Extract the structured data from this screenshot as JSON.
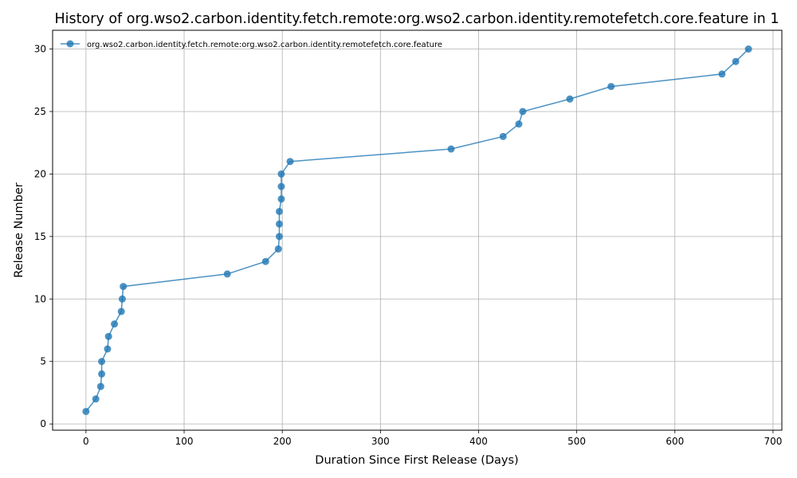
{
  "chart_data": {
    "type": "line",
    "title": "History of org.wso2.carbon.identity.fetch.remote:org.wso2.carbon.identity.remotefetch.core.feature in 1",
    "xlabel": "Duration Since First Release (Days)",
    "ylabel": "Release Number",
    "xlim": [
      -34,
      709
    ],
    "ylim": [
      -0.5,
      31.5
    ],
    "xticks": [
      0,
      100,
      200,
      300,
      400,
      500,
      600,
      700
    ],
    "yticks": [
      0,
      5,
      10,
      15,
      20,
      25,
      30
    ],
    "grid": true,
    "legend_position": "top-left",
    "color": "#1f77b4",
    "series": [
      {
        "name": "org.wso2.carbon.identity.fetch.remote:org.wso2.carbon.identity.remotefetch.core.feature",
        "x": [
          0,
          10,
          15,
          16,
          16,
          22,
          23,
          29,
          36,
          37,
          38,
          144,
          183,
          196,
          197,
          197,
          197,
          199,
          199,
          199,
          208,
          372,
          425,
          441,
          445,
          493,
          535,
          648,
          662,
          675
        ],
        "y": [
          1,
          2,
          3,
          4,
          5,
          6,
          7,
          8,
          9,
          10,
          11,
          12,
          13,
          14,
          15,
          16,
          17,
          18,
          19,
          20,
          21,
          22,
          23,
          24,
          25,
          26,
          27,
          28,
          29,
          30
        ]
      }
    ]
  }
}
